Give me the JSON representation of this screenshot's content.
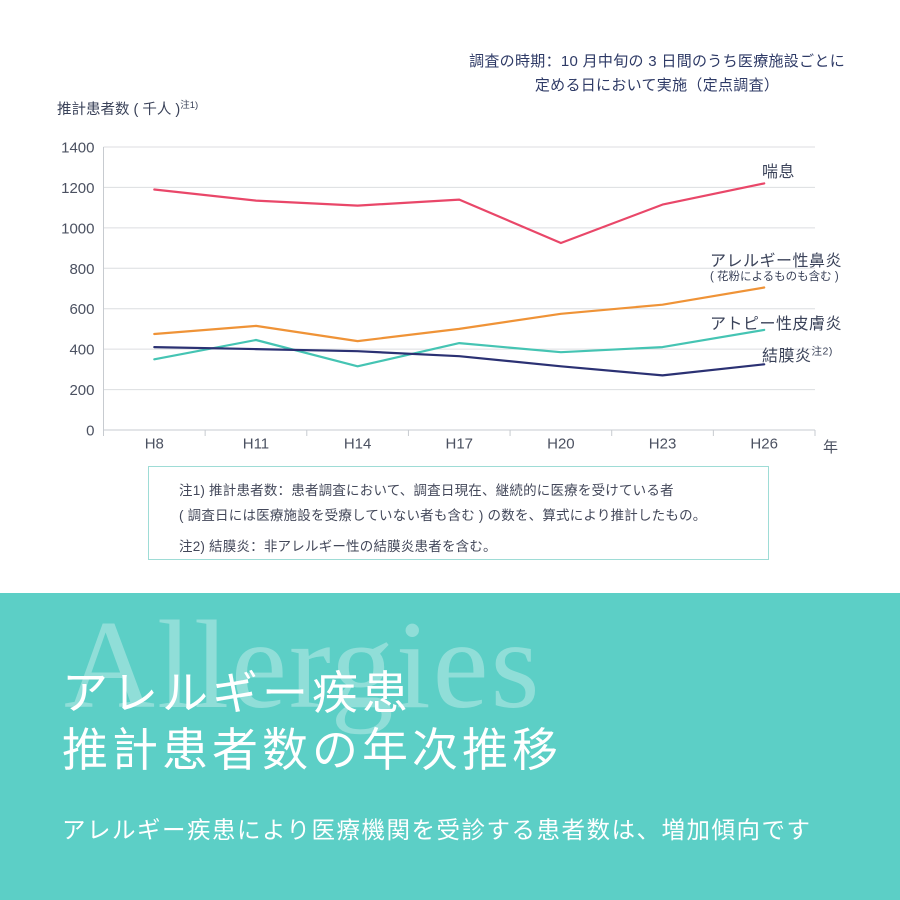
{
  "page": {
    "survey_note_line1": "調査の時期：10 月中旬の 3 日間のうち医療施設ごとに",
    "survey_note_line2": "定める日において実施（定点調査）",
    "y_axis_title": {
      "text": "推計患者数 ( 千人 )",
      "sup": "注1)"
    }
  },
  "chart_data": {
    "type": "line",
    "categories": [
      "H8",
      "H11",
      "H14",
      "H17",
      "H20",
      "H23",
      "H26"
    ],
    "x_axis_unit": "年",
    "ylabel": "推計患者数 ( 千人 )",
    "ylim": [
      0,
      1400
    ],
    "ytick_step": 200,
    "grid": true,
    "legend_position": "right-of-line-labels",
    "series": [
      {
        "name": "喘息",
        "color": "#e94769",
        "values": [
          1190,
          1135,
          1110,
          1140,
          925,
          1115,
          1220
        ]
      },
      {
        "name": "アレルギー性鼻炎",
        "sublabel": "( 花粉によるものも含む )",
        "color": "#ef9337",
        "values": [
          475,
          515,
          440,
          500,
          575,
          620,
          705
        ]
      },
      {
        "name": "アトピー性皮膚炎",
        "color": "#45c4b3",
        "values": [
          350,
          445,
          315,
          430,
          385,
          410,
          495
        ]
      },
      {
        "name": "結膜炎",
        "sup": "注2)",
        "color": "#2b3173",
        "values": [
          410,
          400,
          390,
          365,
          315,
          270,
          325
        ]
      }
    ],
    "style": {
      "gridline_color": "#dcdee0",
      "axis_color": "#c7cbd0",
      "tick_text_color": "#4b5161"
    }
  },
  "notes": {
    "line1": "注1) 推計患者数：患者調査において、調査日現在、継続的に医療を受けている者",
    "line2": "( 調査日には医療施設を受療していない者も含む ) の数を、算式により推計したもの。",
    "line3": "注2) 結膜炎：非アレルギー性の結膜炎患者を含む。"
  },
  "footer": {
    "watermark": "Allergies",
    "title_line1": "アレルギー疾患",
    "title_line2": "推計患者数の年次推移",
    "subtitle": "アレルギー疾患により医療機関を受診する患者数は、増加傾向です",
    "background_color": "#5ccfc6",
    "watermark_color": "rgba(255,255,255,0.32)"
  }
}
